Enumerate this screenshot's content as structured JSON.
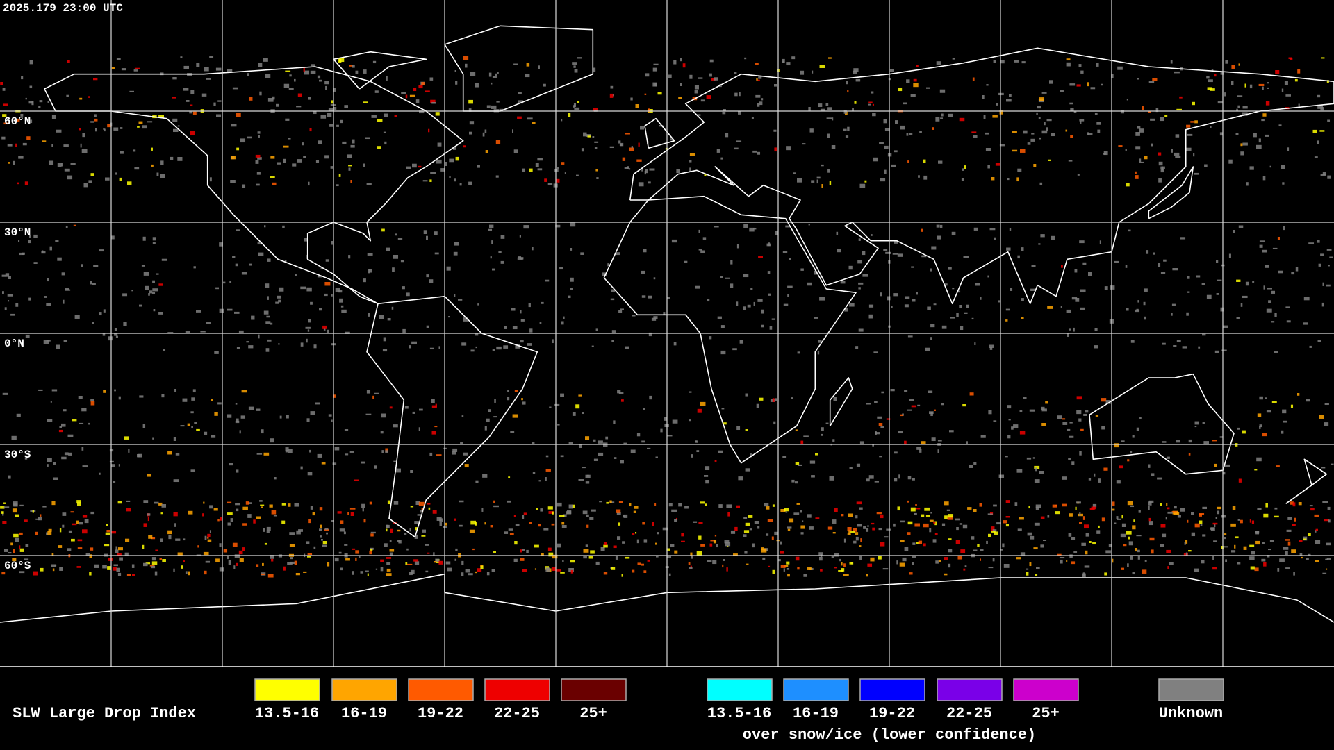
{
  "header": {
    "timestamp": "2025.179 23:00 UTC"
  },
  "map": {
    "lat_labels": [
      "60°N",
      "30°N",
      "0°N",
      "30°S",
      "60°S"
    ]
  },
  "legend": {
    "title": "SLW Large Drop Index",
    "groups": [
      {
        "items": [
          {
            "label": "13.5-16",
            "color": "#ffff00"
          },
          {
            "label": "16-19",
            "color": "#ffa500"
          },
          {
            "label": "19-22",
            "color": "#ff5a00"
          },
          {
            "label": "22-25",
            "color": "#ee0000"
          },
          {
            "label": "25+",
            "color": "#6a0000"
          }
        ]
      },
      {
        "items": [
          {
            "label": "13.5-16",
            "color": "#00ffff"
          },
          {
            "label": "16-19",
            "color": "#1e8fff"
          },
          {
            "label": "19-22",
            "color": "#0000ff"
          },
          {
            "label": "22-25",
            "color": "#7a00e8"
          },
          {
            "label": "25+",
            "color": "#cc00cc"
          }
        ],
        "caption": "over snow/ice (lower confidence)"
      }
    ],
    "unknown": {
      "label": "Unknown",
      "color": "#808080"
    }
  }
}
